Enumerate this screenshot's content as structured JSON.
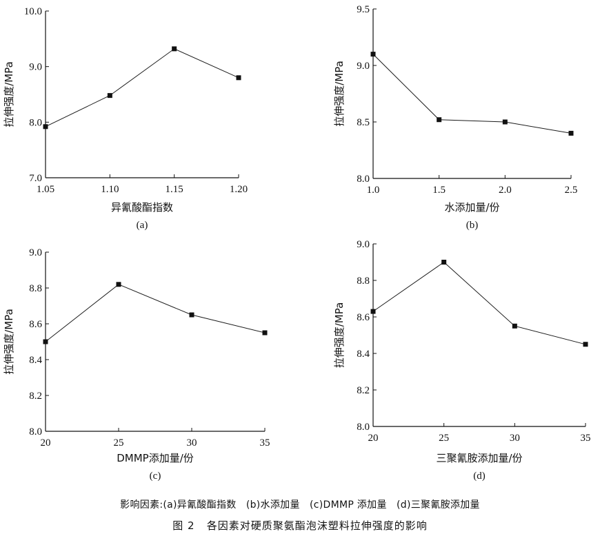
{
  "chart_data": [
    {
      "type": "line",
      "sublabel": "(a)",
      "xlabel": "异氰酸酯指数",
      "ylabel": "拉伸强度/MPa",
      "x": [
        1.05,
        1.1,
        1.15,
        1.2
      ],
      "series": [
        {
          "values": [
            7.92,
            8.48,
            9.32,
            8.8
          ]
        }
      ],
      "xlim": [
        1.05,
        1.2
      ],
      "ylim": [
        7.0,
        10.0
      ],
      "xticks": [
        "1.05",
        "1.10",
        "1.15",
        "1.20"
      ],
      "yticks": [
        "7.0",
        "8.0",
        "9.0",
        "10.0"
      ],
      "marker": "square",
      "grid": false
    },
    {
      "type": "line",
      "sublabel": "(b)",
      "xlabel": "水添加量/份",
      "ylabel": "拉伸强度/MPa",
      "x": [
        1.0,
        1.5,
        2.0,
        2.5
      ],
      "series": [
        {
          "values": [
            9.1,
            8.52,
            8.5,
            8.4
          ]
        }
      ],
      "xlim": [
        1.0,
        2.5
      ],
      "ylim": [
        8.0,
        9.5
      ],
      "xticks": [
        "1.0",
        "1.5",
        "2.0",
        "2.5"
      ],
      "yticks": [
        "8.0",
        "8.5",
        "9.0",
        "9.5"
      ],
      "marker": "square",
      "grid": false
    },
    {
      "type": "line",
      "sublabel": "(c)",
      "xlabel": "DMMP添加量/份",
      "ylabel": "拉伸强度/MPa",
      "x": [
        20,
        25,
        30,
        35
      ],
      "series": [
        {
          "values": [
            8.5,
            8.82,
            8.65,
            8.55
          ]
        }
      ],
      "xlim": [
        20,
        35
      ],
      "ylim": [
        8.0,
        9.0
      ],
      "xticks": [
        "20",
        "25",
        "30",
        "35"
      ],
      "yticks": [
        "8.0",
        "8.2",
        "8.4",
        "8.6",
        "8.8",
        "9.0"
      ],
      "marker": "square",
      "grid": false
    },
    {
      "type": "line",
      "sublabel": "(d)",
      "xlabel": "三聚氰胺添加量/份",
      "ylabel": "拉伸强度/MPa",
      "x": [
        20,
        25,
        30,
        35
      ],
      "series": [
        {
          "values": [
            8.63,
            8.9,
            8.55,
            8.45
          ]
        }
      ],
      "xlim": [
        20,
        35
      ],
      "ylim": [
        8.0,
        9.0
      ],
      "xticks": [
        "20",
        "25",
        "30",
        "35"
      ],
      "yticks": [
        "8.0",
        "8.2",
        "8.4",
        "8.6",
        "8.8",
        "9.0"
      ],
      "marker": "square",
      "grid": false
    }
  ],
  "caption": {
    "legend_note": "影响因素:(a)异氰酸酯指数   (b)水添加量   (c)DMMP 添加量   (d)三聚氰胺添加量",
    "figure_title": "图 2   各因素对硬质聚氨酯泡沫塑料拉伸强度的影响"
  },
  "colors": {
    "axis": "#111111",
    "line": "#1a1a1a",
    "marker": "#111111"
  }
}
